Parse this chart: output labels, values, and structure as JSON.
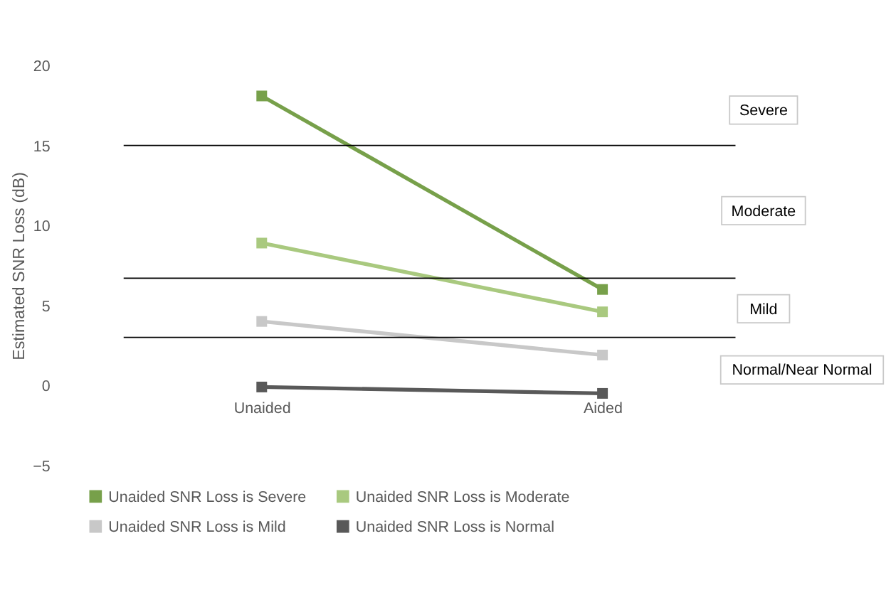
{
  "chart_data": {
    "type": "line",
    "ylabel": "Estimated SNR Loss (dB)",
    "categories": [
      "Unaided",
      "Aided"
    ],
    "series": [
      {
        "name": "Unaided SNR Loss is Severe",
        "color": "#77a04a",
        "values": [
          18.1,
          6.0
        ]
      },
      {
        "name": "Unaided SNR Loss is Moderate",
        "color": "#a9c97f",
        "values": [
          8.9,
          4.6
        ]
      },
      {
        "name": "Unaided SNR Loss is Mild",
        "color": "#c8c8c8",
        "values": [
          4.0,
          1.9
        ]
      },
      {
        "name": "Unaided SNR Loss is Normal",
        "color": "#595959",
        "values": [
          -0.1,
          -0.5
        ]
      }
    ],
    "ylim": [
      -5,
      20
    ],
    "yticks": [
      -5,
      0,
      5,
      10,
      15,
      20
    ],
    "ref_lines": [
      {
        "axis": "y",
        "value": 15,
        "color": "#000000"
      },
      {
        "axis": "y",
        "value": 6.7,
        "color": "#000000"
      },
      {
        "axis": "y",
        "value": 3,
        "color": "#000000"
      }
    ],
    "annotations": [
      "Severe",
      "Moderate",
      "Mild",
      "Normal/Near Normal"
    ],
    "grid": false,
    "legend": "bottom",
    "marker": "square",
    "line_style": "solid"
  }
}
